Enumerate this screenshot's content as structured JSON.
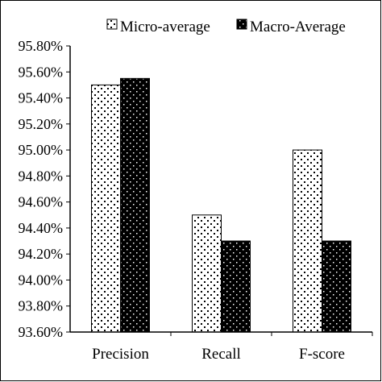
{
  "chart_data": {
    "type": "bar",
    "title": "",
    "xlabel": "",
    "ylabel": "",
    "categories": [
      "Precision",
      "Recall",
      "F-score"
    ],
    "series": [
      {
        "name": "Micro-average",
        "values": [
          95.5,
          94.5,
          95.0
        ],
        "pattern": "dotted-white"
      },
      {
        "name": "Macro-Average",
        "values": [
          95.55,
          94.3,
          94.3
        ],
        "pattern": "dotted-black"
      }
    ],
    "ylim": [
      93.6,
      95.8
    ],
    "ytick_step": 0.2,
    "ytick_labels": [
      "93.60%",
      "93.80%",
      "94.00%",
      "94.20%",
      "94.40%",
      "94.60%",
      "94.80%",
      "95.00%",
      "95.20%",
      "95.40%",
      "95.60%",
      "95.80%"
    ],
    "grid": false,
    "legend_position": "top-right",
    "colors": {
      "frame": "#000000",
      "bar_dot_on_white": "#000000",
      "bar_dot_on_black": "#ffffff",
      "background": "#ffffff"
    }
  }
}
